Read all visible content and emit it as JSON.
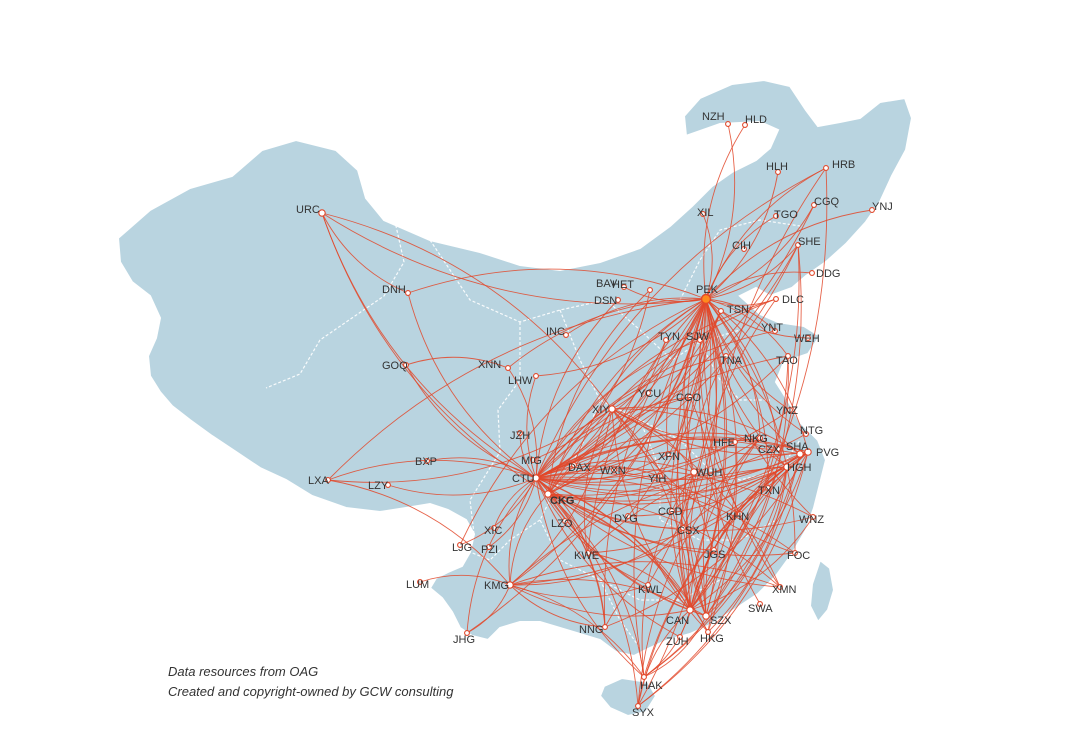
{
  "credits": {
    "line1": "Data resources from OAG",
    "line2": "Created and copyright-owned by GCW consulting"
  },
  "colors": {
    "land": "#b9d4e0",
    "route": "#e2482a",
    "hub": "#ff8a1e"
  },
  "airports": [
    "PEK",
    "CTU",
    "CKG",
    "CAN",
    "SHA",
    "PVG",
    "URC",
    "KMG",
    "HGH",
    "SZX",
    "XIY",
    "WUH",
    "NZH",
    "HLD",
    "HLH",
    "HRB",
    "XIL",
    "TGO",
    "CGQ",
    "YNJ",
    "CIH",
    "SHE",
    "DDG",
    "BAV",
    "HET",
    "DSN",
    "TSN",
    "DLC",
    "INC",
    "TYN",
    "SJW",
    "YNT",
    "WEH",
    "TNA",
    "TAO",
    "DNH",
    "GOQ",
    "XNN",
    "LHW",
    "YCU",
    "CGO",
    "YNZ",
    "JZH",
    "MIG",
    "HFE",
    "NKG",
    "NTG",
    "CZX",
    "XFN",
    "DAX",
    "WXN",
    "YIH",
    "TXN",
    "LXA",
    "BXP",
    "LZY",
    "LZO",
    "DYG",
    "CGD",
    "CSX",
    "KHN",
    "WNZ",
    "XIC",
    "LJG",
    "PZI",
    "KWE",
    "FOC",
    "LUM",
    "JGS",
    "XMN",
    "KWL",
    "SWA",
    "NNG",
    "ZUH",
    "HKG",
    "JHG",
    "HAK",
    "SYX"
  ],
  "hubs": [
    "PEK",
    "CTU",
    "CKG",
    "CAN",
    "SHA",
    "PVG",
    "HGH",
    "SZX",
    "KMG",
    "XIY",
    "WUH",
    "URC"
  ],
  "routes": [
    [
      "PEK",
      "URC"
    ],
    [
      "PEK",
      "NZH"
    ],
    [
      "PEK",
      "HLD"
    ],
    [
      "PEK",
      "HLH"
    ],
    [
      "PEK",
      "HRB"
    ],
    [
      "PEK",
      "XIL"
    ],
    [
      "PEK",
      "TGO"
    ],
    [
      "PEK",
      "CGQ"
    ],
    [
      "PEK",
      "YNJ"
    ],
    [
      "PEK",
      "SHE"
    ],
    [
      "PEK",
      "DDG"
    ],
    [
      "PEK",
      "DLC"
    ],
    [
      "PEK",
      "YNT"
    ],
    [
      "PEK",
      "WEH"
    ],
    [
      "PEK",
      "TAO"
    ],
    [
      "PEK",
      "DNH"
    ],
    [
      "PEK",
      "BAV"
    ],
    [
      "PEK",
      "INC"
    ],
    [
      "PEK",
      "LHW"
    ],
    [
      "PEK",
      "XNN"
    ],
    [
      "PEK",
      "CTU"
    ],
    [
      "PEK",
      "CKG"
    ],
    [
      "PEK",
      "KMG"
    ],
    [
      "PEK",
      "LXA"
    ],
    [
      "PEK",
      "CAN"
    ],
    [
      "PEK",
      "SZX"
    ],
    [
      "PEK",
      "HKG"
    ],
    [
      "PEK",
      "XMN"
    ],
    [
      "PEK",
      "FOC"
    ],
    [
      "PEK",
      "HGH"
    ],
    [
      "PEK",
      "PVG"
    ],
    [
      "PEK",
      "SHA"
    ],
    [
      "PEK",
      "NKG"
    ],
    [
      "PEK",
      "WUH"
    ],
    [
      "PEK",
      "CSX"
    ],
    [
      "PEK",
      "HAK"
    ],
    [
      "PEK",
      "SYX"
    ],
    [
      "PEK",
      "NNG"
    ],
    [
      "PEK",
      "KWL"
    ],
    [
      "PEK",
      "KWE"
    ],
    [
      "PEK",
      "XIY"
    ],
    [
      "PEK",
      "WNZ"
    ],
    [
      "PEK",
      "TXN"
    ],
    [
      "PEK",
      "NTG"
    ],
    [
      "PEK",
      "CZX"
    ],
    [
      "PEK",
      "YNZ"
    ],
    [
      "PEK",
      "ZUH"
    ],
    [
      "PEK",
      "SWA"
    ],
    [
      "PEK",
      "JHG"
    ],
    [
      "PEK",
      "LJG"
    ],
    [
      "PEK",
      "MIG"
    ],
    [
      "PEK",
      "DAX"
    ],
    [
      "PEK",
      "YIH"
    ],
    [
      "PEK",
      "XFN"
    ],
    [
      "PEK",
      "WXN"
    ],
    [
      "PEK",
      "KHN"
    ],
    [
      "PEK",
      "DYG"
    ],
    [
      "PEK",
      "JGS"
    ],
    [
      "CTU",
      "URC"
    ],
    [
      "CTU",
      "LXA"
    ],
    [
      "CTU",
      "LZY"
    ],
    [
      "CTU",
      "BXP"
    ],
    [
      "CTU",
      "GOQ"
    ],
    [
      "CTU",
      "XNN"
    ],
    [
      "CTU",
      "LHW"
    ],
    [
      "CTU",
      "HET"
    ],
    [
      "CTU",
      "DSN"
    ],
    [
      "CTU",
      "TYN"
    ],
    [
      "CTU",
      "SJW"
    ],
    [
      "CTU",
      "TSN"
    ],
    [
      "CTU",
      "TNA"
    ],
    [
      "CTU",
      "TAO"
    ],
    [
      "CTU",
      "DLC"
    ],
    [
      "CTU",
      "SHE"
    ],
    [
      "CTU",
      "HRB"
    ],
    [
      "CTU",
      "CGQ"
    ],
    [
      "CTU",
      "CGO"
    ],
    [
      "CTU",
      "XIY"
    ],
    [
      "CTU",
      "WUH"
    ],
    [
      "CTU",
      "CSX"
    ],
    [
      "CTU",
      "CAN"
    ],
    [
      "CTU",
      "SZX"
    ],
    [
      "CTU",
      "HKG"
    ],
    [
      "CTU",
      "XMN"
    ],
    [
      "CTU",
      "FOC"
    ],
    [
      "CTU",
      "HGH"
    ],
    [
      "CTU",
      "PVG"
    ],
    [
      "CTU",
      "SHA"
    ],
    [
      "CTU",
      "NKG"
    ],
    [
      "CTU",
      "HFE"
    ],
    [
      "CTU",
      "WNZ"
    ],
    [
      "CTU",
      "KMG"
    ],
    [
      "CTU",
      "LJG"
    ],
    [
      "CTU",
      "XIC"
    ],
    [
      "CTU",
      "PZI"
    ],
    [
      "CTU",
      "JHG"
    ],
    [
      "CTU",
      "NNG"
    ],
    [
      "CTU",
      "HAK"
    ],
    [
      "CTU",
      "SYX"
    ],
    [
      "CTU",
      "KWL"
    ],
    [
      "CTU",
      "KWE"
    ],
    [
      "CTU",
      "ZUH"
    ],
    [
      "CTU",
      "YNT"
    ],
    [
      "CTU",
      "NTG"
    ],
    [
      "CTU",
      "JZH"
    ],
    [
      "CTU",
      "YCU"
    ],
    [
      "CTU",
      "YIH"
    ],
    [
      "CTU",
      "XFN"
    ],
    [
      "CTU",
      "KHN"
    ],
    [
      "CTU",
      "JGS"
    ],
    [
      "CTU",
      "CZX"
    ],
    [
      "CTU",
      "YNZ"
    ],
    [
      "CKG",
      "URC"
    ],
    [
      "CKG",
      "PVG"
    ],
    [
      "CKG",
      "SHA"
    ],
    [
      "CKG",
      "HGH"
    ],
    [
      "CKG",
      "CAN"
    ],
    [
      "CKG",
      "SZX"
    ],
    [
      "CKG",
      "XMN"
    ],
    [
      "CKG",
      "FOC"
    ],
    [
      "CKG",
      "HAK"
    ],
    [
      "CKG",
      "NKG"
    ],
    [
      "CKG",
      "TAO"
    ],
    [
      "CKG",
      "SHE"
    ],
    [
      "CKG",
      "DLC"
    ],
    [
      "CKG",
      "TSN"
    ],
    [
      "CKG",
      "CGO"
    ],
    [
      "CKG",
      "TYN"
    ],
    [
      "CKG",
      "HET"
    ],
    [
      "CKG",
      "WUH"
    ],
    [
      "CKG",
      "XIY"
    ],
    [
      "CKG",
      "KMG"
    ],
    [
      "CKG",
      "HKG"
    ],
    [
      "CKG",
      "WNZ"
    ],
    [
      "CKG",
      "NNG"
    ],
    [
      "URC",
      "DNH"
    ],
    [
      "URC",
      "XIY"
    ],
    [
      "KMG",
      "LUM"
    ],
    [
      "KMG",
      "JHG"
    ],
    [
      "KMG",
      "CAN"
    ],
    [
      "KMG",
      "SZX"
    ],
    [
      "KMG",
      "PVG"
    ],
    [
      "KMG",
      "HGH"
    ],
    [
      "KMG",
      "NNG"
    ],
    [
      "KMG",
      "HAK"
    ],
    [
      "KMG",
      "CSX"
    ],
    [
      "KMG",
      "XMN"
    ],
    [
      "KMG",
      "KWL"
    ],
    [
      "CAN",
      "HGH"
    ],
    [
      "CAN",
      "PVG"
    ],
    [
      "CAN",
      "SHA"
    ],
    [
      "CAN",
      "WNZ"
    ],
    [
      "CAN",
      "NKG"
    ],
    [
      "CAN",
      "XIY"
    ],
    [
      "CAN",
      "WUH"
    ],
    [
      "CAN",
      "TAO"
    ],
    [
      "CAN",
      "TSN"
    ],
    [
      "CAN",
      "SHE"
    ],
    [
      "CAN",
      "DLC"
    ],
    [
      "CAN",
      "HRB"
    ],
    [
      "CAN",
      "CGO"
    ],
    [
      "CAN",
      "KWE"
    ],
    [
      "CAN",
      "HAK"
    ],
    [
      "CAN",
      "SYX"
    ],
    [
      "CAN",
      "TNA"
    ],
    [
      "CAN",
      "HFE"
    ],
    [
      "SZX",
      "PVG"
    ],
    [
      "SZX",
      "HGH"
    ],
    [
      "SZX",
      "NKG"
    ],
    [
      "SZX",
      "XIY"
    ],
    [
      "SZX",
      "WUH"
    ],
    [
      "SZX",
      "TAO"
    ],
    [
      "SZX",
      "TSN"
    ],
    [
      "SZX",
      "SHE"
    ],
    [
      "SZX",
      "HRB"
    ],
    [
      "SZX",
      "CGO"
    ],
    [
      "SZX",
      "HAK"
    ],
    [
      "HGH",
      "XIY"
    ],
    [
      "HGH",
      "KWE"
    ],
    [
      "HGH",
      "NNG"
    ],
    [
      "PVG",
      "XIY"
    ],
    [
      "PVG",
      "KWE"
    ],
    [
      "PVG",
      "NNG"
    ],
    [
      "SHA",
      "XIY"
    ],
    [
      "NKG",
      "XIY"
    ],
    [
      "WUH",
      "XIY"
    ],
    [
      "HKG",
      "XIY"
    ],
    [
      "HKG",
      "HGH"
    ],
    [
      "HKG",
      "PVG"
    ],
    [
      "XMN",
      "XIY"
    ],
    [
      "FOC",
      "XIY"
    ],
    [
      "HAK",
      "SHA"
    ],
    [
      "HAK",
      "PVG"
    ],
    [
      "HAK",
      "HGH"
    ],
    [
      "HAK",
      "WUH"
    ],
    [
      "SYX",
      "PVG"
    ],
    [
      "SYX",
      "HGH"
    ],
    [
      "SYX",
      "SHA"
    ],
    [
      "SYX",
      "NKG"
    ],
    [
      "LXA",
      "XIY"
    ],
    [
      "LXA",
      "KMG"
    ],
    [
      "XIY",
      "KWE"
    ],
    [
      "XIY",
      "KMG"
    ],
    [
      "DNH",
      "CTU"
    ],
    [
      "GOQ",
      "XNN"
    ],
    [
      "WXN",
      "PVG"
    ],
    [
      "DAX",
      "PVG"
    ],
    [
      "DYG",
      "SHA"
    ],
    [
      "CGD",
      "HGH"
    ],
    [
      "TXN",
      "CAN"
    ],
    [
      "JGS",
      "PVG"
    ]
  ]
}
